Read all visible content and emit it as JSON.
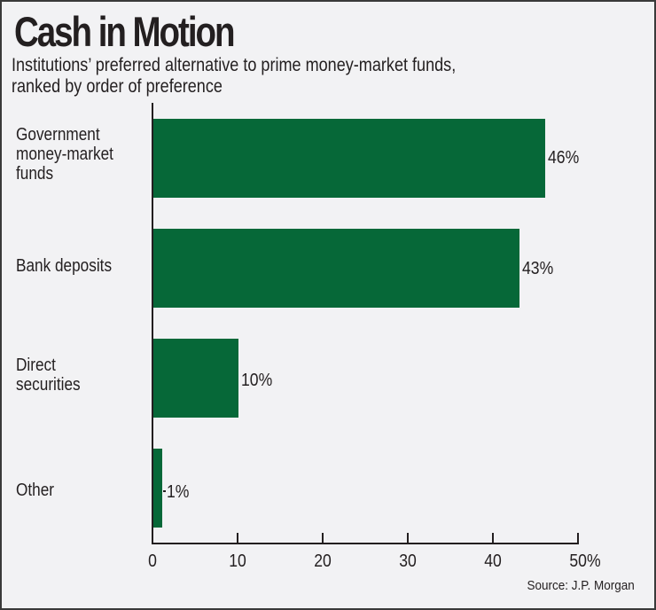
{
  "header": {
    "title": "Cash in Motion",
    "subtitle_line1": "Institutions’ preferred alternative to prime money-market funds,",
    "subtitle_line2": "ranked by order of preference"
  },
  "colors": {
    "bar": "#066838",
    "background": "#f2f2f4",
    "text": "#231f20"
  },
  "bars": [
    {
      "label_lines": [
        "Government",
        "money-market",
        "funds"
      ],
      "value": 46,
      "value_label": "46%"
    },
    {
      "label_lines": [
        "Bank deposits"
      ],
      "value": 43,
      "value_label": "43%"
    },
    {
      "label_lines": [
        "Direct",
        "securities"
      ],
      "value": 10,
      "value_label": "10%"
    },
    {
      "label_lines": [
        "Other"
      ],
      "value": 1,
      "value_label": "1%"
    }
  ],
  "x_axis": {
    "ticks": [
      "0",
      "10",
      "20",
      "30",
      "40",
      "50%"
    ]
  },
  "footer": {
    "source": "Source: J.P. Morgan"
  },
  "chart_data": {
    "type": "bar",
    "orientation": "horizontal",
    "title": "Cash in Motion",
    "subtitle": "Institutions’ preferred alternative to prime money-market funds, ranked by order of preference",
    "categories": [
      "Government money-market funds",
      "Bank deposits",
      "Direct securities",
      "Other"
    ],
    "values": [
      46,
      43,
      10,
      1
    ],
    "value_labels": [
      "46%",
      "43%",
      "10%",
      "1%"
    ],
    "xlabel": "",
    "ylabel": "",
    "xlim": [
      0,
      50
    ],
    "x_ticks": [
      0,
      10,
      20,
      30,
      40,
      50
    ],
    "x_tick_labels": [
      "0",
      "10",
      "20",
      "30",
      "40",
      "50%"
    ],
    "grid": false,
    "legend": null,
    "source": "Source: J.P. Morgan"
  }
}
